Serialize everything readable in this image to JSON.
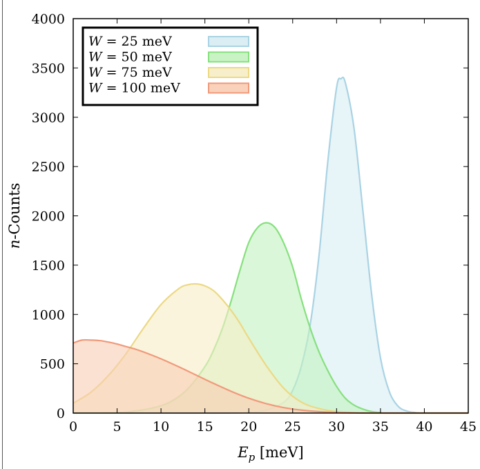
{
  "chart_data": {
    "type": "area",
    "title": "",
    "xlabel": "E_p [meV]",
    "ylabel": "n-Counts",
    "xlim": [
      0,
      45
    ],
    "ylim": [
      0,
      4000
    ],
    "xticks": [
      "0",
      "5",
      "10",
      "15",
      "20",
      "25",
      "30",
      "35",
      "40",
      "45"
    ],
    "yticks": [
      "0",
      "500",
      "1000",
      "1500",
      "2000",
      "2500",
      "3000",
      "3500",
      "4000"
    ],
    "grid": false,
    "legend_position": "top-left",
    "series": [
      {
        "name": "W = 25 meV",
        "legend_label": "W =  25 meV",
        "color": "#a9d3e3",
        "fill": "#d7ecf3",
        "x": [
          0,
          16,
          18,
          20,
          22,
          24,
          25,
          26,
          27,
          28,
          29,
          30,
          30.5,
          31,
          32,
          33,
          34,
          35,
          36,
          37,
          38,
          39,
          40,
          45
        ],
        "y": [
          0,
          0,
          2,
          8,
          30,
          110,
          230,
          480,
          900,
          1600,
          2550,
          3300,
          3390,
          3350,
          2880,
          2050,
          1200,
          560,
          220,
          70,
          20,
          5,
          0,
          0
        ]
      },
      {
        "name": "W = 50 meV",
        "legend_label": "W =  50 meV",
        "color": "#86e07e",
        "fill": "#c3f2bf",
        "x": [
          0,
          5,
          7,
          9,
          11,
          13,
          15,
          16,
          17,
          18,
          19,
          20,
          21,
          22,
          23,
          24,
          25,
          26,
          27,
          28,
          29,
          30,
          31,
          32,
          33,
          34,
          35,
          36,
          45
        ],
        "y": [
          0,
          3,
          20,
          50,
          110,
          240,
          470,
          640,
          860,
          1140,
          1450,
          1730,
          1880,
          1930,
          1880,
          1720,
          1480,
          1150,
          860,
          620,
          430,
          270,
          150,
          80,
          40,
          15,
          5,
          0,
          0
        ]
      },
      {
        "name": "W = 75 meV",
        "legend_label": "W =  75 meV",
        "color": "#ecd983",
        "fill": "#f6edc6",
        "x": [
          0,
          2,
          4,
          6,
          8,
          10,
          12,
          13,
          14,
          15,
          16,
          17,
          18,
          19,
          20,
          22,
          24,
          26,
          28,
          30,
          32,
          34,
          36,
          45
        ],
        "y": [
          100,
          210,
          380,
          600,
          860,
          1100,
          1260,
          1300,
          1310,
          1290,
          1240,
          1150,
          1040,
          910,
          760,
          480,
          250,
          110,
          45,
          15,
          5,
          1,
          0,
          0
        ]
      },
      {
        "name": "W = 100 meV",
        "legend_label": "W = 100 meV",
        "color": "#f0997a",
        "fill": "#f9cdb4",
        "x": [
          0,
          1,
          2,
          3,
          4,
          5,
          6,
          7,
          8,
          10,
          12,
          14,
          16,
          18,
          20,
          22,
          24,
          26,
          28,
          30,
          32,
          34,
          45
        ],
        "y": [
          710,
          740,
          740,
          735,
          720,
          700,
          675,
          650,
          620,
          550,
          470,
          385,
          300,
          220,
          150,
          95,
          55,
          30,
          15,
          6,
          2,
          0,
          0
        ]
      }
    ]
  }
}
